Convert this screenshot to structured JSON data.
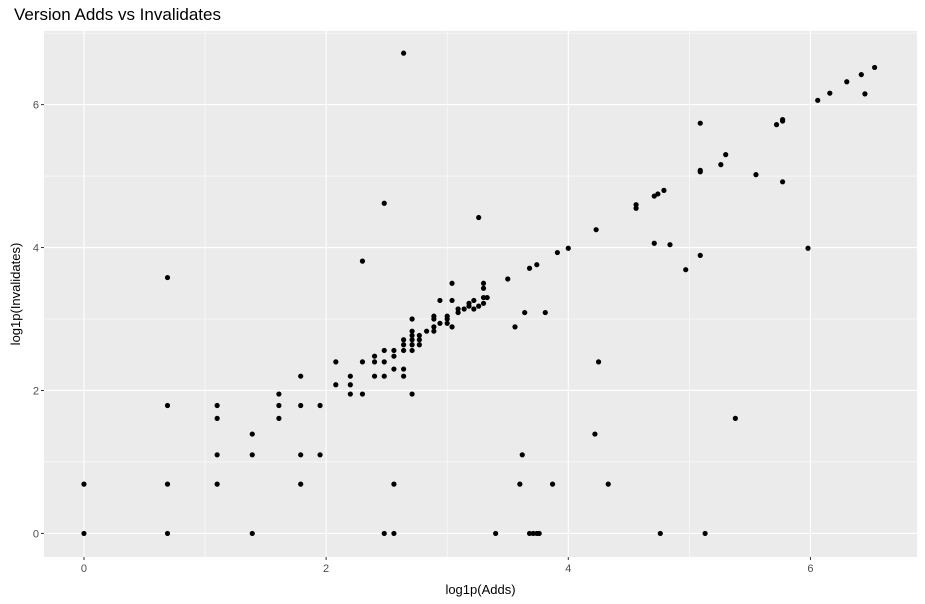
{
  "chart_data": {
    "type": "scatter",
    "title": "Version Adds vs Invalidates",
    "xlabel": "log1p(Adds)",
    "ylabel": "log1p(Invalidates)",
    "xlim": [
      -0.33,
      6.88
    ],
    "ylim": [
      -0.33,
      7.03
    ],
    "xticks": [
      0,
      2,
      4,
      6
    ],
    "yticks": [
      0,
      2,
      4,
      6
    ],
    "grid": true,
    "legend": "none",
    "colors": {
      "panel": "#ebebeb",
      "grid": "#ffffff",
      "point": "#000000"
    },
    "points": [
      [
        0,
        0
      ],
      [
        0,
        0.69
      ],
      [
        0.69,
        0
      ],
      [
        0.69,
        0.69
      ],
      [
        0.69,
        1.79
      ],
      [
        0.69,
        3.58
      ],
      [
        1.1,
        0.69
      ],
      [
        1.1,
        1.1
      ],
      [
        1.1,
        1.61
      ],
      [
        1.1,
        1.79
      ],
      [
        1.39,
        0
      ],
      [
        1.39,
        1.1
      ],
      [
        1.39,
        1.39
      ],
      [
        1.61,
        1.61
      ],
      [
        1.61,
        1.79
      ],
      [
        1.61,
        1.95
      ],
      [
        1.79,
        0.69
      ],
      [
        1.79,
        1.1
      ],
      [
        1.79,
        1.79
      ],
      [
        1.79,
        2.2
      ],
      [
        1.95,
        1.1
      ],
      [
        1.95,
        1.79
      ],
      [
        2.08,
        2.08
      ],
      [
        2.08,
        2.4
      ],
      [
        2.2,
        1.95
      ],
      [
        2.2,
        2.08
      ],
      [
        2.2,
        2.2
      ],
      [
        2.3,
        1.95
      ],
      [
        2.3,
        2.4
      ],
      [
        2.3,
        3.81
      ],
      [
        2.4,
        2.2
      ],
      [
        2.4,
        2.4
      ],
      [
        2.4,
        2.48
      ],
      [
        2.48,
        0
      ],
      [
        2.48,
        2.2
      ],
      [
        2.48,
        2.4
      ],
      [
        2.48,
        2.56
      ],
      [
        2.48,
        4.62
      ],
      [
        2.56,
        0
      ],
      [
        2.56,
        0.69
      ],
      [
        2.56,
        2.3
      ],
      [
        2.56,
        2.48
      ],
      [
        2.56,
        2.56
      ],
      [
        2.64,
        2.2
      ],
      [
        2.64,
        2.3
      ],
      [
        2.64,
        2.56
      ],
      [
        2.64,
        2.64
      ],
      [
        2.64,
        2.71
      ],
      [
        2.64,
        6.72
      ],
      [
        2.71,
        1.95
      ],
      [
        2.71,
        2.56
      ],
      [
        2.71,
        2.64
      ],
      [
        2.71,
        2.71
      ],
      [
        2.71,
        2.77
      ],
      [
        2.71,
        2.83
      ],
      [
        2.71,
        3.0
      ],
      [
        2.77,
        2.64
      ],
      [
        2.77,
        2.71
      ],
      [
        2.77,
        2.77
      ],
      [
        2.83,
        2.83
      ],
      [
        2.89,
        2.83
      ],
      [
        2.89,
        2.89
      ],
      [
        2.89,
        3.0
      ],
      [
        2.89,
        3.04
      ],
      [
        2.94,
        2.94
      ],
      [
        2.94,
        3.26
      ],
      [
        3.0,
        2.94
      ],
      [
        3.0,
        3.0
      ],
      [
        3.0,
        3.04
      ],
      [
        3.04,
        2.89
      ],
      [
        3.04,
        3.26
      ],
      [
        3.04,
        3.5
      ],
      [
        3.09,
        3.09
      ],
      [
        3.09,
        3.14
      ],
      [
        3.14,
        3.14
      ],
      [
        3.18,
        3.18
      ],
      [
        3.18,
        3.22
      ],
      [
        3.22,
        3.14
      ],
      [
        3.22,
        3.26
      ],
      [
        3.26,
        3.18
      ],
      [
        3.26,
        4.42
      ],
      [
        3.3,
        3.22
      ],
      [
        3.3,
        3.3
      ],
      [
        3.3,
        3.43
      ],
      [
        3.3,
        3.5
      ],
      [
        3.33,
        3.3
      ],
      [
        3.4,
        0
      ],
      [
        3.5,
        3.56
      ],
      [
        3.56,
        2.89
      ],
      [
        3.6,
        0.69
      ],
      [
        3.62,
        1.1
      ],
      [
        3.64,
        3.09
      ],
      [
        3.68,
        0
      ],
      [
        3.68,
        3.71
      ],
      [
        3.71,
        0
      ],
      [
        3.74,
        0
      ],
      [
        3.74,
        3.76
      ],
      [
        3.76,
        0
      ],
      [
        3.81,
        3.09
      ],
      [
        3.87,
        0.69
      ],
      [
        3.91,
        3.93
      ],
      [
        4.0,
        3.99
      ],
      [
        4.22,
        1.39
      ],
      [
        4.23,
        4.25
      ],
      [
        4.25,
        2.4
      ],
      [
        4.33,
        0.69
      ],
      [
        4.56,
        4.55
      ],
      [
        4.56,
        4.6
      ],
      [
        4.71,
        4.06
      ],
      [
        4.71,
        4.72
      ],
      [
        4.74,
        4.75
      ],
      [
        4.76,
        0
      ],
      [
        4.79,
        4.8
      ],
      [
        4.84,
        4.04
      ],
      [
        4.97,
        3.69
      ],
      [
        5.09,
        3.89
      ],
      [
        5.09,
        5.06
      ],
      [
        5.09,
        5.08
      ],
      [
        5.09,
        5.74
      ],
      [
        5.13,
        0
      ],
      [
        5.26,
        5.16
      ],
      [
        5.3,
        5.3
      ],
      [
        5.38,
        1.61
      ],
      [
        5.55,
        5.02
      ],
      [
        5.72,
        5.72
      ],
      [
        5.77,
        4.92
      ],
      [
        5.77,
        5.77
      ],
      [
        5.77,
        5.79
      ],
      [
        5.98,
        3.99
      ],
      [
        6.06,
        6.06
      ],
      [
        6.16,
        6.16
      ],
      [
        6.3,
        6.32
      ],
      [
        6.42,
        6.42
      ],
      [
        6.45,
        6.15
      ],
      [
        6.53,
        6.52
      ]
    ]
  }
}
